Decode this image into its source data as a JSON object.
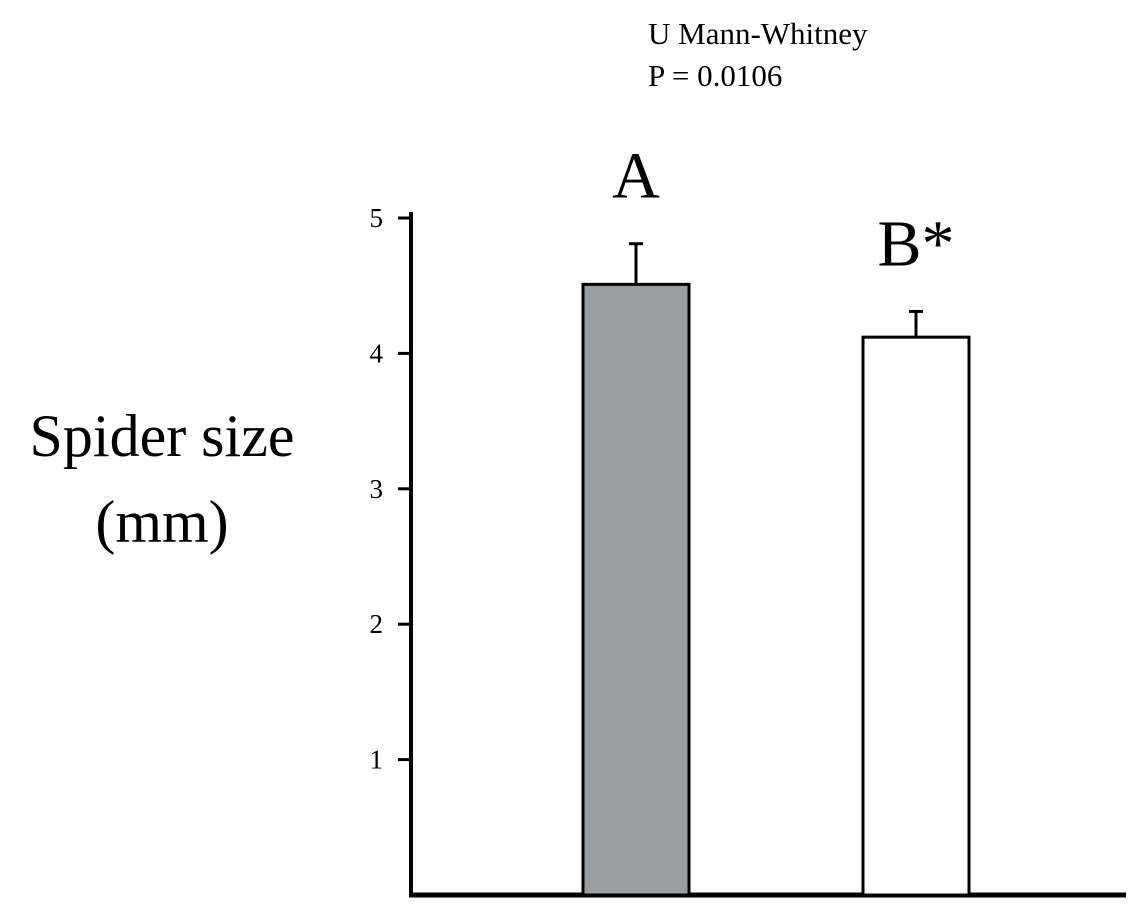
{
  "chart_data": {
    "type": "bar",
    "annotations": [
      "U Mann-Whitney",
      "P = 0.0106"
    ],
    "ylabel": [
      "Spider size",
      "(mm)"
    ],
    "categories": [
      "A",
      "B*"
    ],
    "values": [
      4.51,
      4.12
    ],
    "errors": [
      0.3,
      0.19
    ],
    "colors": [
      "#9b9ea0",
      "#ffffff"
    ],
    "ylim": [
      0,
      5
    ],
    "yticks": [
      1,
      2,
      3,
      4,
      5
    ],
    "grid": false
  }
}
